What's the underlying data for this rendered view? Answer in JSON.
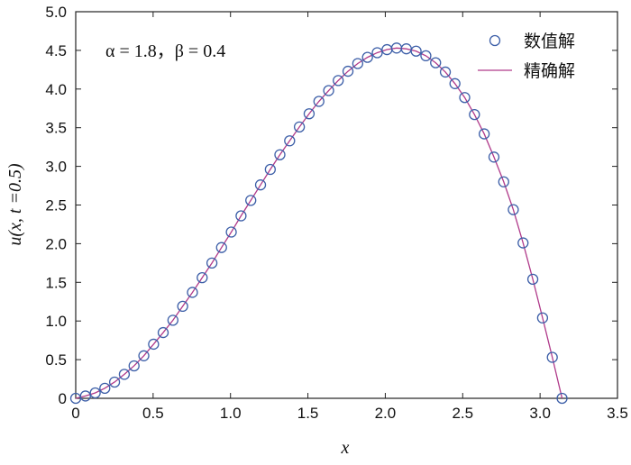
{
  "chart_data": {
    "type": "line",
    "xlabel": "x",
    "ylabel": "u(x, t =0.5)",
    "xlim": [
      0,
      3.5
    ],
    "ylim": [
      0,
      5.0
    ],
    "x_ticks": [
      "0",
      "0.5",
      "1.0",
      "1.5",
      "2.0",
      "2.5",
      "3.0",
      "3.5"
    ],
    "y_ticks": [
      "0",
      "0.5",
      "1.0",
      "1.5",
      "2.0",
      "2.5",
      "3.0",
      "3.5",
      "4.0",
      "4.5",
      "5.0"
    ],
    "grid": false,
    "legend_position": "top-right",
    "annotation": "α = 1.8，β = 0.4",
    "series": [
      {
        "name": "数值解",
        "style": "markers",
        "marker": "open-circle",
        "color": "#3d5fa8",
        "x": [
          0.0,
          0.063,
          0.126,
          0.188,
          0.251,
          0.314,
          0.377,
          0.44,
          0.503,
          0.565,
          0.628,
          0.691,
          0.754,
          0.817,
          0.88,
          0.942,
          1.005,
          1.068,
          1.131,
          1.194,
          1.257,
          1.319,
          1.382,
          1.445,
          1.508,
          1.571,
          1.634,
          1.696,
          1.759,
          1.822,
          1.885,
          1.948,
          2.011,
          2.073,
          2.136,
          2.199,
          2.262,
          2.325,
          2.388,
          2.45,
          2.513,
          2.576,
          2.639,
          2.702,
          2.765,
          2.827,
          2.89,
          2.953,
          3.016,
          3.079,
          3.142
        ],
        "y": [
          0.0,
          0.03,
          0.07,
          0.13,
          0.21,
          0.31,
          0.42,
          0.55,
          0.7,
          0.85,
          1.01,
          1.19,
          1.37,
          1.56,
          1.75,
          1.95,
          2.15,
          2.36,
          2.56,
          2.76,
          2.96,
          3.15,
          3.33,
          3.51,
          3.68,
          3.84,
          3.98,
          4.11,
          4.23,
          4.33,
          4.41,
          4.47,
          4.51,
          4.53,
          4.52,
          4.49,
          4.43,
          4.34,
          4.22,
          4.07,
          3.89,
          3.67,
          3.42,
          3.12,
          2.8,
          2.44,
          2.01,
          1.54,
          1.04,
          0.53,
          0.0
        ]
      },
      {
        "name": "精确解",
        "style": "line",
        "color": "#b03a8a",
        "x": [
          0.0,
          0.063,
          0.126,
          0.188,
          0.251,
          0.314,
          0.377,
          0.44,
          0.503,
          0.565,
          0.628,
          0.691,
          0.754,
          0.817,
          0.88,
          0.942,
          1.005,
          1.068,
          1.131,
          1.194,
          1.257,
          1.319,
          1.382,
          1.445,
          1.508,
          1.571,
          1.634,
          1.696,
          1.759,
          1.822,
          1.885,
          1.948,
          2.011,
          2.073,
          2.136,
          2.199,
          2.262,
          2.325,
          2.388,
          2.45,
          2.513,
          2.576,
          2.639,
          2.702,
          2.765,
          2.827,
          2.89,
          2.953,
          3.016,
          3.079,
          3.142
        ],
        "y": [
          0.0,
          0.03,
          0.07,
          0.13,
          0.21,
          0.31,
          0.42,
          0.55,
          0.7,
          0.85,
          1.01,
          1.19,
          1.37,
          1.56,
          1.75,
          1.95,
          2.15,
          2.36,
          2.56,
          2.76,
          2.96,
          3.15,
          3.33,
          3.51,
          3.68,
          3.84,
          3.98,
          4.11,
          4.23,
          4.33,
          4.41,
          4.47,
          4.51,
          4.53,
          4.52,
          4.49,
          4.43,
          4.34,
          4.22,
          4.07,
          3.89,
          3.67,
          3.42,
          3.12,
          2.8,
          2.44,
          2.01,
          1.54,
          1.04,
          0.53,
          0.0
        ]
      }
    ]
  }
}
